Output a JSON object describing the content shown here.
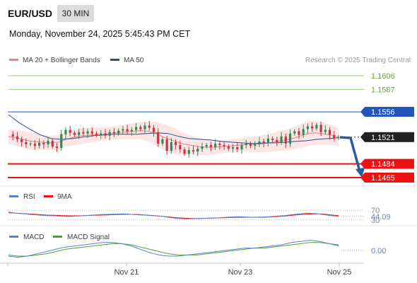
{
  "header": {
    "symbol": "EUR/USD",
    "timeframe": "30 MIN",
    "datetime": "Monday, November 24, 2025 5:45:43 PM CET"
  },
  "legend": {
    "ma_bb_label": "MA 20 + Bollinger Bands",
    "ma50_label": "MA 50",
    "credit": "Research © 2025 Trading Central",
    "ma_bb_color": "#f47c7c",
    "ma50_color": "#2a4f8f"
  },
  "colors": {
    "up": "#2e8b57",
    "down": "#cc3344",
    "resistance": "#2255bb",
    "support": "#ee1111",
    "target": "#66aa33",
    "arrow": "#2a5aa0"
  },
  "chart_data": [
    {
      "type": "candlestick",
      "panel": "price",
      "levels": [
        {
          "label": "1.1606",
          "kind": "target"
        },
        {
          "label": "1.1587",
          "kind": "target"
        },
        {
          "label": "1.1556",
          "kind": "resistance"
        },
        {
          "label": "1.1521",
          "kind": "last"
        },
        {
          "label": "1.1484",
          "kind": "support"
        },
        {
          "label": "1.1465",
          "kind": "support"
        }
      ],
      "x_ticks": [
        "Nov 21",
        "Nov 23",
        "Nov 25"
      ],
      "close_path": [
        1.1525,
        1.1522,
        1.1518,
        1.1514,
        1.1511,
        1.1512,
        1.1509,
        1.1513,
        1.1511,
        1.1516,
        1.1508,
        1.1506,
        1.1525,
        1.1531,
        1.1527,
        1.1524,
        1.1528,
        1.1526,
        1.1529,
        1.1526,
        1.1524,
        1.1526,
        1.1523,
        1.1528,
        1.1526,
        1.153,
        1.1532,
        1.1529,
        1.1531,
        1.1535,
        1.1532,
        1.1537,
        1.1534,
        1.1528,
        1.1512,
        1.1518,
        1.1502,
        1.1514,
        1.151,
        1.1504,
        1.1498,
        1.1503,
        1.1501,
        1.1505,
        1.1508,
        1.151,
        1.1507,
        1.1512,
        1.151,
        1.1508,
        1.1505,
        1.1507,
        1.1504,
        1.151,
        1.1512,
        1.1509,
        1.1511,
        1.1515,
        1.1513,
        1.1519,
        1.1517,
        1.1514,
        1.1522,
        1.1512,
        1.1526,
        1.1529,
        1.1524,
        1.1532,
        1.1536,
        1.1533,
        1.1538,
        1.1528,
        1.1531,
        1.1524,
        1.152,
        1.1521
      ],
      "ma20_path": [
        1.1522,
        1.152,
        1.1517,
        1.1515,
        1.1514,
        1.1513,
        1.1514,
        1.1518,
        1.1521,
        1.1523,
        1.1524,
        1.1525,
        1.1526,
        1.1527,
        1.1528,
        1.1529,
        1.153,
        1.1529,
        1.1525,
        1.152,
        1.1516,
        1.1512,
        1.151,
        1.1508,
        1.1507,
        1.1507,
        1.1508,
        1.1509,
        1.151,
        1.1511,
        1.1511,
        1.1512,
        1.1514,
        1.1516,
        1.1518,
        1.1521,
        1.1525,
        1.1527,
        1.1526,
        1.1524,
        1.1521
      ],
      "ma50_path": [
        1.1552,
        1.1541,
        1.1532,
        1.1524,
        1.1519,
        1.1518,
        1.1519,
        1.1521,
        1.1523,
        1.1524,
        1.1525,
        1.1525,
        1.1525,
        1.1526,
        1.1527,
        1.1526,
        1.1522,
        1.1519,
        1.1518,
        1.1517,
        1.1515,
        1.1514,
        1.1513,
        1.1512,
        1.1513,
        1.1513,
        1.1514,
        1.1515,
        1.1516,
        1.1518,
        1.1519,
        1.152
      ]
    },
    {
      "type": "line",
      "panel": "rsi",
      "series": [
        {
          "name": "RSI"
        },
        {
          "name": "9MA"
        }
      ],
      "levels": [
        {
          "label": "70"
        },
        {
          "label": "44.09"
        },
        {
          "label": "30"
        }
      ],
      "rsi_path": [
        62,
        58,
        55,
        52,
        50,
        48,
        47,
        45,
        44,
        46,
        48,
        50,
        52,
        53,
        54,
        55,
        53,
        51,
        49,
        47,
        45,
        40,
        36,
        34,
        35,
        36,
        37,
        38,
        40,
        42,
        43,
        42,
        41,
        42,
        43,
        46,
        48,
        52,
        55,
        58,
        56,
        52,
        48,
        44
      ],
      "ma9_path": [
        60,
        58,
        56,
        54,
        52,
        50,
        49,
        48,
        47,
        47,
        48,
        49,
        50,
        51,
        52,
        53,
        53,
        52,
        50,
        48,
        45,
        42,
        39,
        37,
        36,
        36,
        37,
        38,
        39,
        40,
        41,
        41,
        41,
        41,
        42,
        44,
        46,
        49,
        52,
        54,
        55,
        54,
        51,
        48
      ]
    },
    {
      "type": "line",
      "panel": "macd",
      "series": [
        {
          "name": "MACD"
        },
        {
          "name": "MACD Signal"
        }
      ],
      "levels": [
        {
          "label": "0.00"
        }
      ],
      "macd_path": [
        -0.0005,
        -0.0006,
        -0.0005,
        -0.0003,
        -0.0001,
        0.0001,
        0.0003,
        0.0004,
        0.0005,
        0.0006,
        0.0007,
        0.0007,
        0.0006,
        0.0004,
        0.0001,
        -0.0002,
        -0.0004,
        -0.0005,
        -0.0005,
        -0.0004,
        -0.0003,
        -0.0002,
        -0.0001,
        0.0,
        0.0001,
        0.0002,
        0.0002,
        0.0003,
        0.0004,
        0.0005,
        0.0007,
        0.0008,
        0.0009,
        0.0008,
        0.0006,
        0.0004
      ],
      "signal_path": [
        -0.0004,
        -0.0005,
        -0.0005,
        -0.0004,
        -0.0003,
        -0.0001,
        0.0001,
        0.0002,
        0.0003,
        0.0004,
        0.0005,
        0.0006,
        0.0006,
        0.0005,
        0.0003,
        0.0001,
        -0.0001,
        -0.0003,
        -0.0004,
        -0.0004,
        -0.0004,
        -0.0003,
        -0.0002,
        -0.0001,
        0.0,
        0.0001,
        0.0002,
        0.0002,
        0.0003,
        0.0004,
        0.0005,
        0.0006,
        0.0007,
        0.0007,
        0.0006,
        0.0005
      ]
    }
  ],
  "rsi_legend": {
    "rsi_label": "RSI",
    "ma_label": "9MA",
    "rsi_color": "#5b7fd6",
    "ma_color": "#ee1111"
  },
  "macd_legend": {
    "macd_label": "MACD",
    "signal_label": "MACD Signal",
    "macd_color": "#5b7fd6",
    "signal_color": "#44aa22"
  }
}
